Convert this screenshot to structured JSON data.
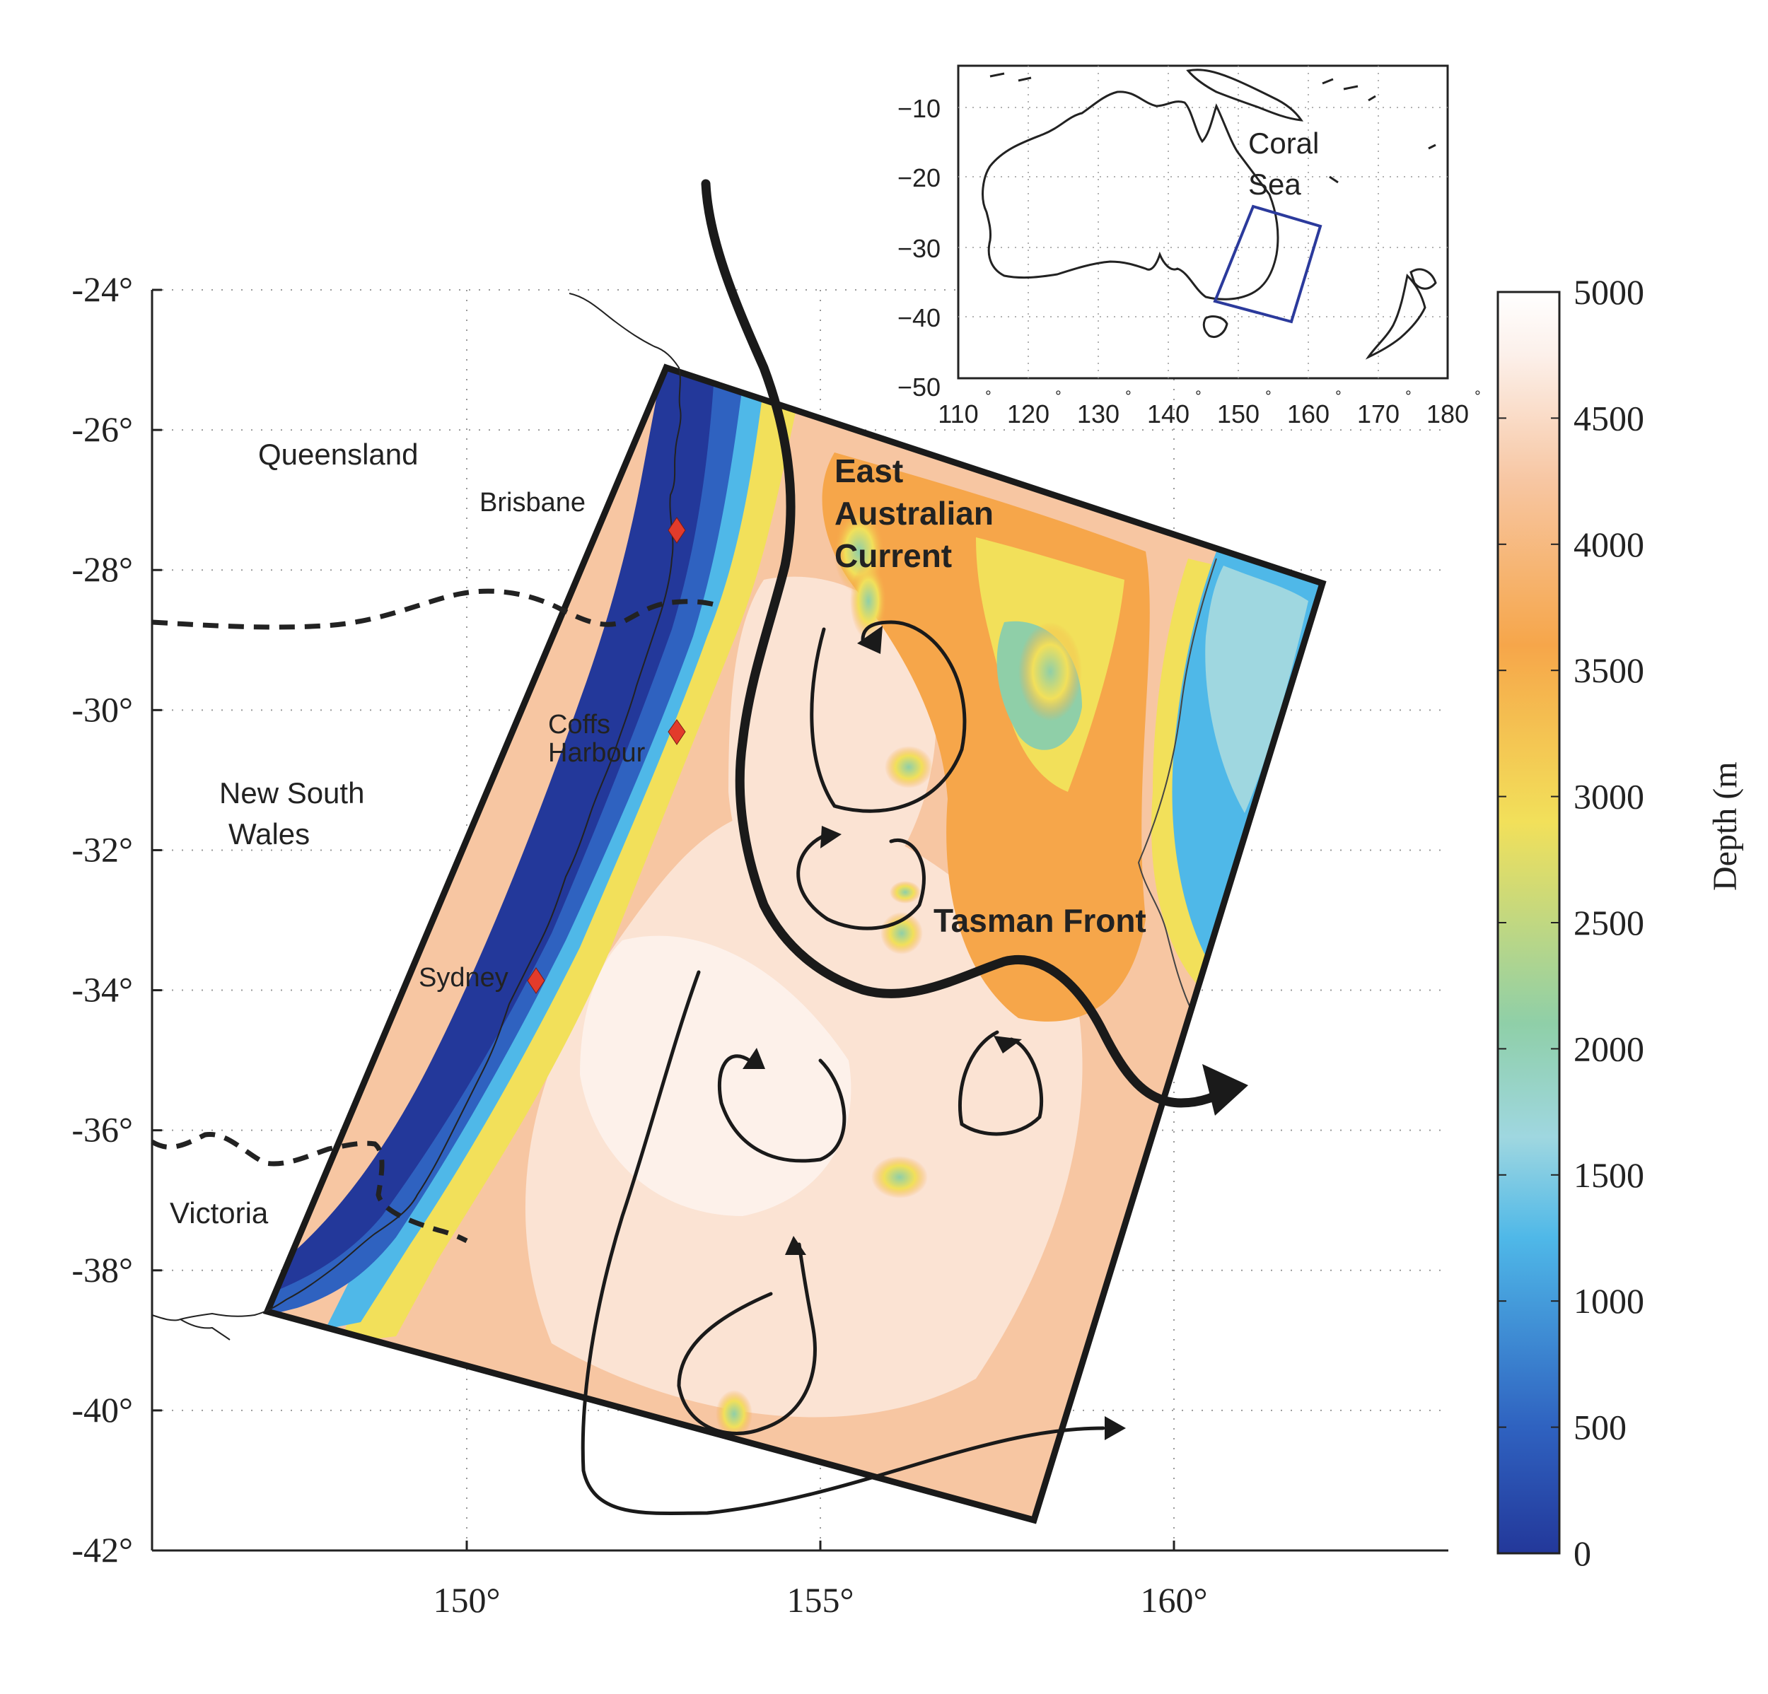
{
  "map": {
    "lat_ticks": [
      "-24°",
      "-26°",
      "-28°",
      "-30°",
      "-32°",
      "-34°",
      "-36°",
      "-38°",
      "-40°",
      "-42°"
    ],
    "lon_ticks": [
      "150°",
      "155°",
      "160°"
    ],
    "grid": true,
    "lat_range": [
      -42,
      -24
    ],
    "lon_range": [
      145.5,
      164
    ]
  },
  "labels": {
    "queensland": "Queensland",
    "nsw_line1": "New South",
    "nsw_line2": "Wales",
    "victoria": "Victoria",
    "brisbane": "Brisbane",
    "coffs_line1": "Coffs",
    "coffs_line2": "Harbour",
    "sydney": "Sydney",
    "eac_line1": "East",
    "eac_line2": "Australian",
    "eac_line3": "Current",
    "tasman_front": "Tasman Front"
  },
  "cities": [
    {
      "name": "Brisbane",
      "lon": 153.0,
      "lat": -27.45
    },
    {
      "name": "Coffs Harbour",
      "lon": 153.1,
      "lat": -30.3
    },
    {
      "name": "Sydney",
      "lon": 151.2,
      "lat": -33.87
    }
  ],
  "colorbar": {
    "ticks": [
      "5000",
      "4500",
      "4000",
      "3500",
      "3000",
      "2500",
      "2000",
      "1500",
      "1000",
      "500",
      "0"
    ],
    "label": "Depth (m",
    "colors": [
      "#23389a",
      "#2f62c0",
      "#4fb8e8",
      "#9fd7e0",
      "#8fcfa8",
      "#f2e05a",
      "#f6a64a",
      "#f7c6a2",
      "#fcf0ea",
      "#ffffff"
    ],
    "range": [
      0,
      5000
    ]
  },
  "inset": {
    "y_ticks": [
      "−10",
      "−20",
      "−30",
      "−40",
      "−50"
    ],
    "x_ticks": [
      "110",
      "120",
      "130",
      "140",
      "150",
      "160",
      "170",
      "180"
    ],
    "degree_mark": "°",
    "coral_line1": "Coral",
    "coral_line2": "Sea",
    "box_color": "#2b3a9c"
  }
}
